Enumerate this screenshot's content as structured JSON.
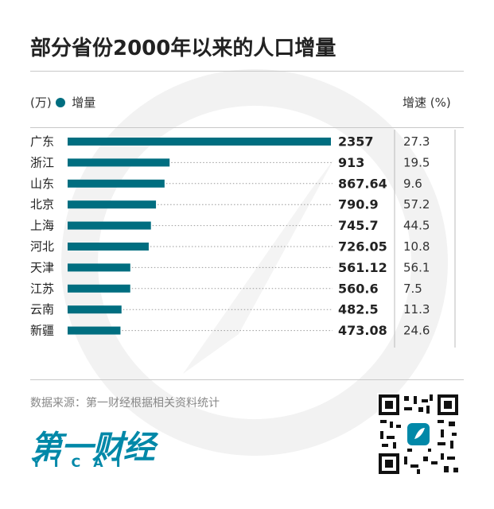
{
  "header": {
    "title": "部分省份2000年以来的人口增量",
    "unit": "(万)",
    "legend_label": "增量",
    "rate_header": "增速 (%)"
  },
  "footer": {
    "source": "数据来源：第一财经根据相关资料统计",
    "logo_cn": "第一财经",
    "logo_en": "YICAI"
  },
  "colors": {
    "bar": "#006e80",
    "logo": "#0088a8"
  },
  "chart_data": {
    "type": "bar",
    "orientation": "horizontal",
    "title": "部分省份2000年以来的人口增量",
    "categories": [
      "广东",
      "浙江",
      "山东",
      "北京",
      "上海",
      "河北",
      "天津",
      "江苏",
      "云南",
      "新疆"
    ],
    "series": [
      {
        "name": "增量",
        "values": [
          2357,
          913,
          867.64,
          790.9,
          745.7,
          726.05,
          561.12,
          560.6,
          482.5,
          473.08
        ]
      }
    ],
    "value_labels": [
      "2357",
      "913",
      "867.64",
      "790.9",
      "745.7",
      "726.05",
      "561.12",
      "560.6",
      "482.5",
      "473.08"
    ],
    "growth_rate": [
      27.3,
      19.5,
      9.6,
      57.2,
      44.5,
      10.8,
      56.1,
      7.5,
      11.3,
      24.6
    ],
    "growth_rate_labels": [
      "27.3",
      "19.5",
      "9.6",
      "57.2",
      "44.5",
      "10.8",
      "56.1",
      "7.5",
      "11.3",
      "24.6"
    ],
    "xlim": [
      0,
      2357
    ],
    "grid": false,
    "leader_lines": "dotted"
  }
}
